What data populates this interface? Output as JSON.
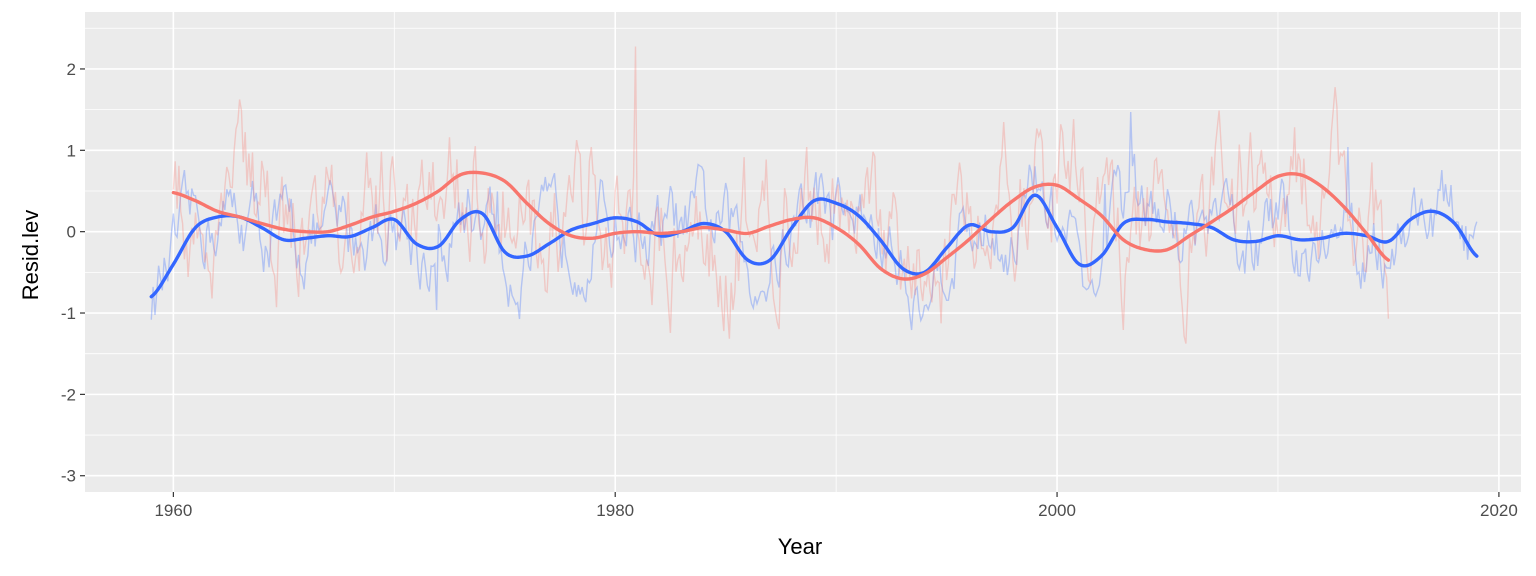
{
  "chart_data": {
    "type": "line",
    "xlabel": "Year",
    "ylabel": "Resid.lev",
    "xlim": [
      1956,
      2021
    ],
    "ylim": [
      -3.2,
      2.7
    ],
    "xticks": [
      1960,
      1980,
      2000,
      2020
    ],
    "yticks": [
      -3,
      -2,
      -1,
      0,
      1,
      2
    ],
    "grid": true,
    "legend": "none",
    "colors": {
      "panel": "#EBEBEB",
      "grid": "#FFFFFF",
      "blue": "#3366FF",
      "red": "#F8766D"
    },
    "series": [
      {
        "color": "#3366FF",
        "style": "smoothed",
        "x": [
          1959,
          1960,
          1961,
          1962,
          1963,
          1964,
          1965,
          1966,
          1967,
          1968,
          1969,
          1970,
          1971,
          1972,
          1973,
          1974,
          1975,
          1976,
          1977,
          1978,
          1979,
          1980,
          1981,
          1982,
          1983,
          1984,
          1985,
          1986,
          1987,
          1988,
          1989,
          1990,
          1991,
          1992,
          1993,
          1994,
          1995,
          1996,
          1997,
          1998,
          1999,
          2000,
          2001,
          2002,
          2003,
          2004,
          2005,
          2006,
          2007,
          2008,
          2009,
          2010,
          2011,
          2012,
          2013,
          2014,
          2015,
          2016,
          2017,
          2018,
          2019
        ],
        "y": [
          -0.8,
          -0.4,
          0.05,
          0.18,
          0.18,
          0.05,
          -0.1,
          -0.08,
          -0.05,
          -0.06,
          0.05,
          0.15,
          -0.15,
          -0.18,
          0.15,
          0.22,
          -0.25,
          -0.3,
          -0.15,
          0.02,
          0.1,
          0.17,
          0.12,
          -0.05,
          0.0,
          0.1,
          0.0,
          -0.35,
          -0.35,
          0.05,
          0.38,
          0.35,
          0.2,
          -0.1,
          -0.45,
          -0.5,
          -0.2,
          0.08,
          0.0,
          0.05,
          0.45,
          0.05,
          -0.4,
          -0.3,
          0.1,
          0.15,
          0.12,
          0.1,
          0.05,
          -0.1,
          -0.12,
          -0.05,
          -0.1,
          -0.08,
          -0.02,
          -0.05,
          -0.12,
          0.15,
          0.25,
          0.1,
          -0.3
        ]
      },
      {
        "color": "#F8766D",
        "style": "smoothed",
        "x": [
          1960,
          1961,
          1962,
          1963,
          1964,
          1965,
          1966,
          1967,
          1968,
          1969,
          1970,
          1971,
          1972,
          1973,
          1974,
          1975,
          1976,
          1977,
          1978,
          1979,
          1980,
          1981,
          1982,
          1983,
          1984,
          1985,
          1986,
          1987,
          1988,
          1989,
          1990,
          1991,
          1992,
          1993,
          1994,
          1995,
          1996,
          1997,
          1998,
          1999,
          2000,
          2001,
          2002,
          2003,
          2004,
          2005,
          2006,
          2007,
          2008,
          2009,
          2010,
          2011,
          2012,
          2013,
          2014,
          2015
        ],
        "y": [
          0.48,
          0.38,
          0.25,
          0.18,
          0.1,
          0.03,
          0.0,
          0.0,
          0.08,
          0.18,
          0.25,
          0.35,
          0.5,
          0.7,
          0.72,
          0.62,
          0.35,
          0.1,
          -0.05,
          -0.08,
          -0.02,
          0.0,
          -0.02,
          0.0,
          0.05,
          0.02,
          -0.02,
          0.07,
          0.15,
          0.17,
          0.05,
          -0.15,
          -0.45,
          -0.58,
          -0.52,
          -0.32,
          -0.1,
          0.15,
          0.38,
          0.55,
          0.57,
          0.4,
          0.2,
          -0.1,
          -0.22,
          -0.22,
          -0.05,
          0.12,
          0.3,
          0.5,
          0.68,
          0.7,
          0.55,
          0.3,
          -0.02,
          -0.35
        ]
      }
    ]
  }
}
